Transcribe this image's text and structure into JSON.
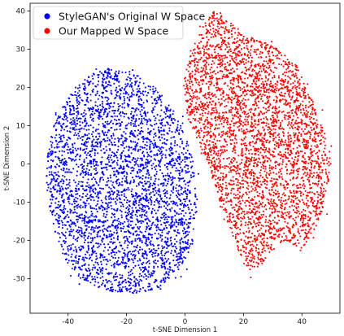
{
  "chart_data": {
    "type": "scatter",
    "title": "",
    "xlabel": "t-SNE Dimension 1",
    "ylabel": "t-SNE Dimension 2",
    "xlim": [
      -53,
      53
    ],
    "ylim": [
      -39,
      42
    ],
    "xticks": [
      -40,
      -20,
      0,
      20,
      40
    ],
    "yticks": [
      -30,
      -20,
      -10,
      0,
      10,
      20,
      30,
      40
    ],
    "grid": false,
    "legend_position": "top-left",
    "series": [
      {
        "name": "StyleGAN's Original W Space",
        "color": "#0000ff",
        "cluster": {
          "shape": "ellipse",
          "x_range": [
            -50,
            4
          ],
          "y_range": [
            -34,
            25
          ]
        },
        "outline_x": [
          -48,
          -46,
          -42,
          -36,
          -28,
          -18,
          -10,
          -5,
          0,
          3,
          4,
          3,
          0,
          -4,
          -10,
          -18,
          -26,
          -34,
          -40,
          -45,
          -48
        ],
        "outline_y": [
          -2,
          -14,
          -24,
          -30,
          -33,
          -34,
          -33,
          -30,
          -26,
          -20,
          -10,
          0,
          8,
          14,
          20,
          24,
          25,
          23,
          18,
          10,
          -2
        ]
      },
      {
        "name": "Our Mapped W Space",
        "color": "#ff0000",
        "cluster": {
          "shape": "irregular",
          "x_range": [
            -1,
            50
          ],
          "y_range": [
            -29,
            40
          ]
        },
        "outline_x": [
          -1,
          2,
          6,
          10,
          14,
          20,
          26,
          32,
          38,
          44,
          48,
          50,
          48,
          44,
          40,
          34,
          28,
          24,
          20,
          16,
          12,
          8,
          4,
          1,
          -1
        ],
        "outline_y": [
          20,
          30,
          36,
          40,
          38,
          34,
          32,
          30,
          26,
          16,
          8,
          0,
          -10,
          -18,
          -22,
          -20,
          -24,
          -29,
          -26,
          -18,
          -10,
          0,
          6,
          12,
          20
        ]
      }
    ]
  }
}
